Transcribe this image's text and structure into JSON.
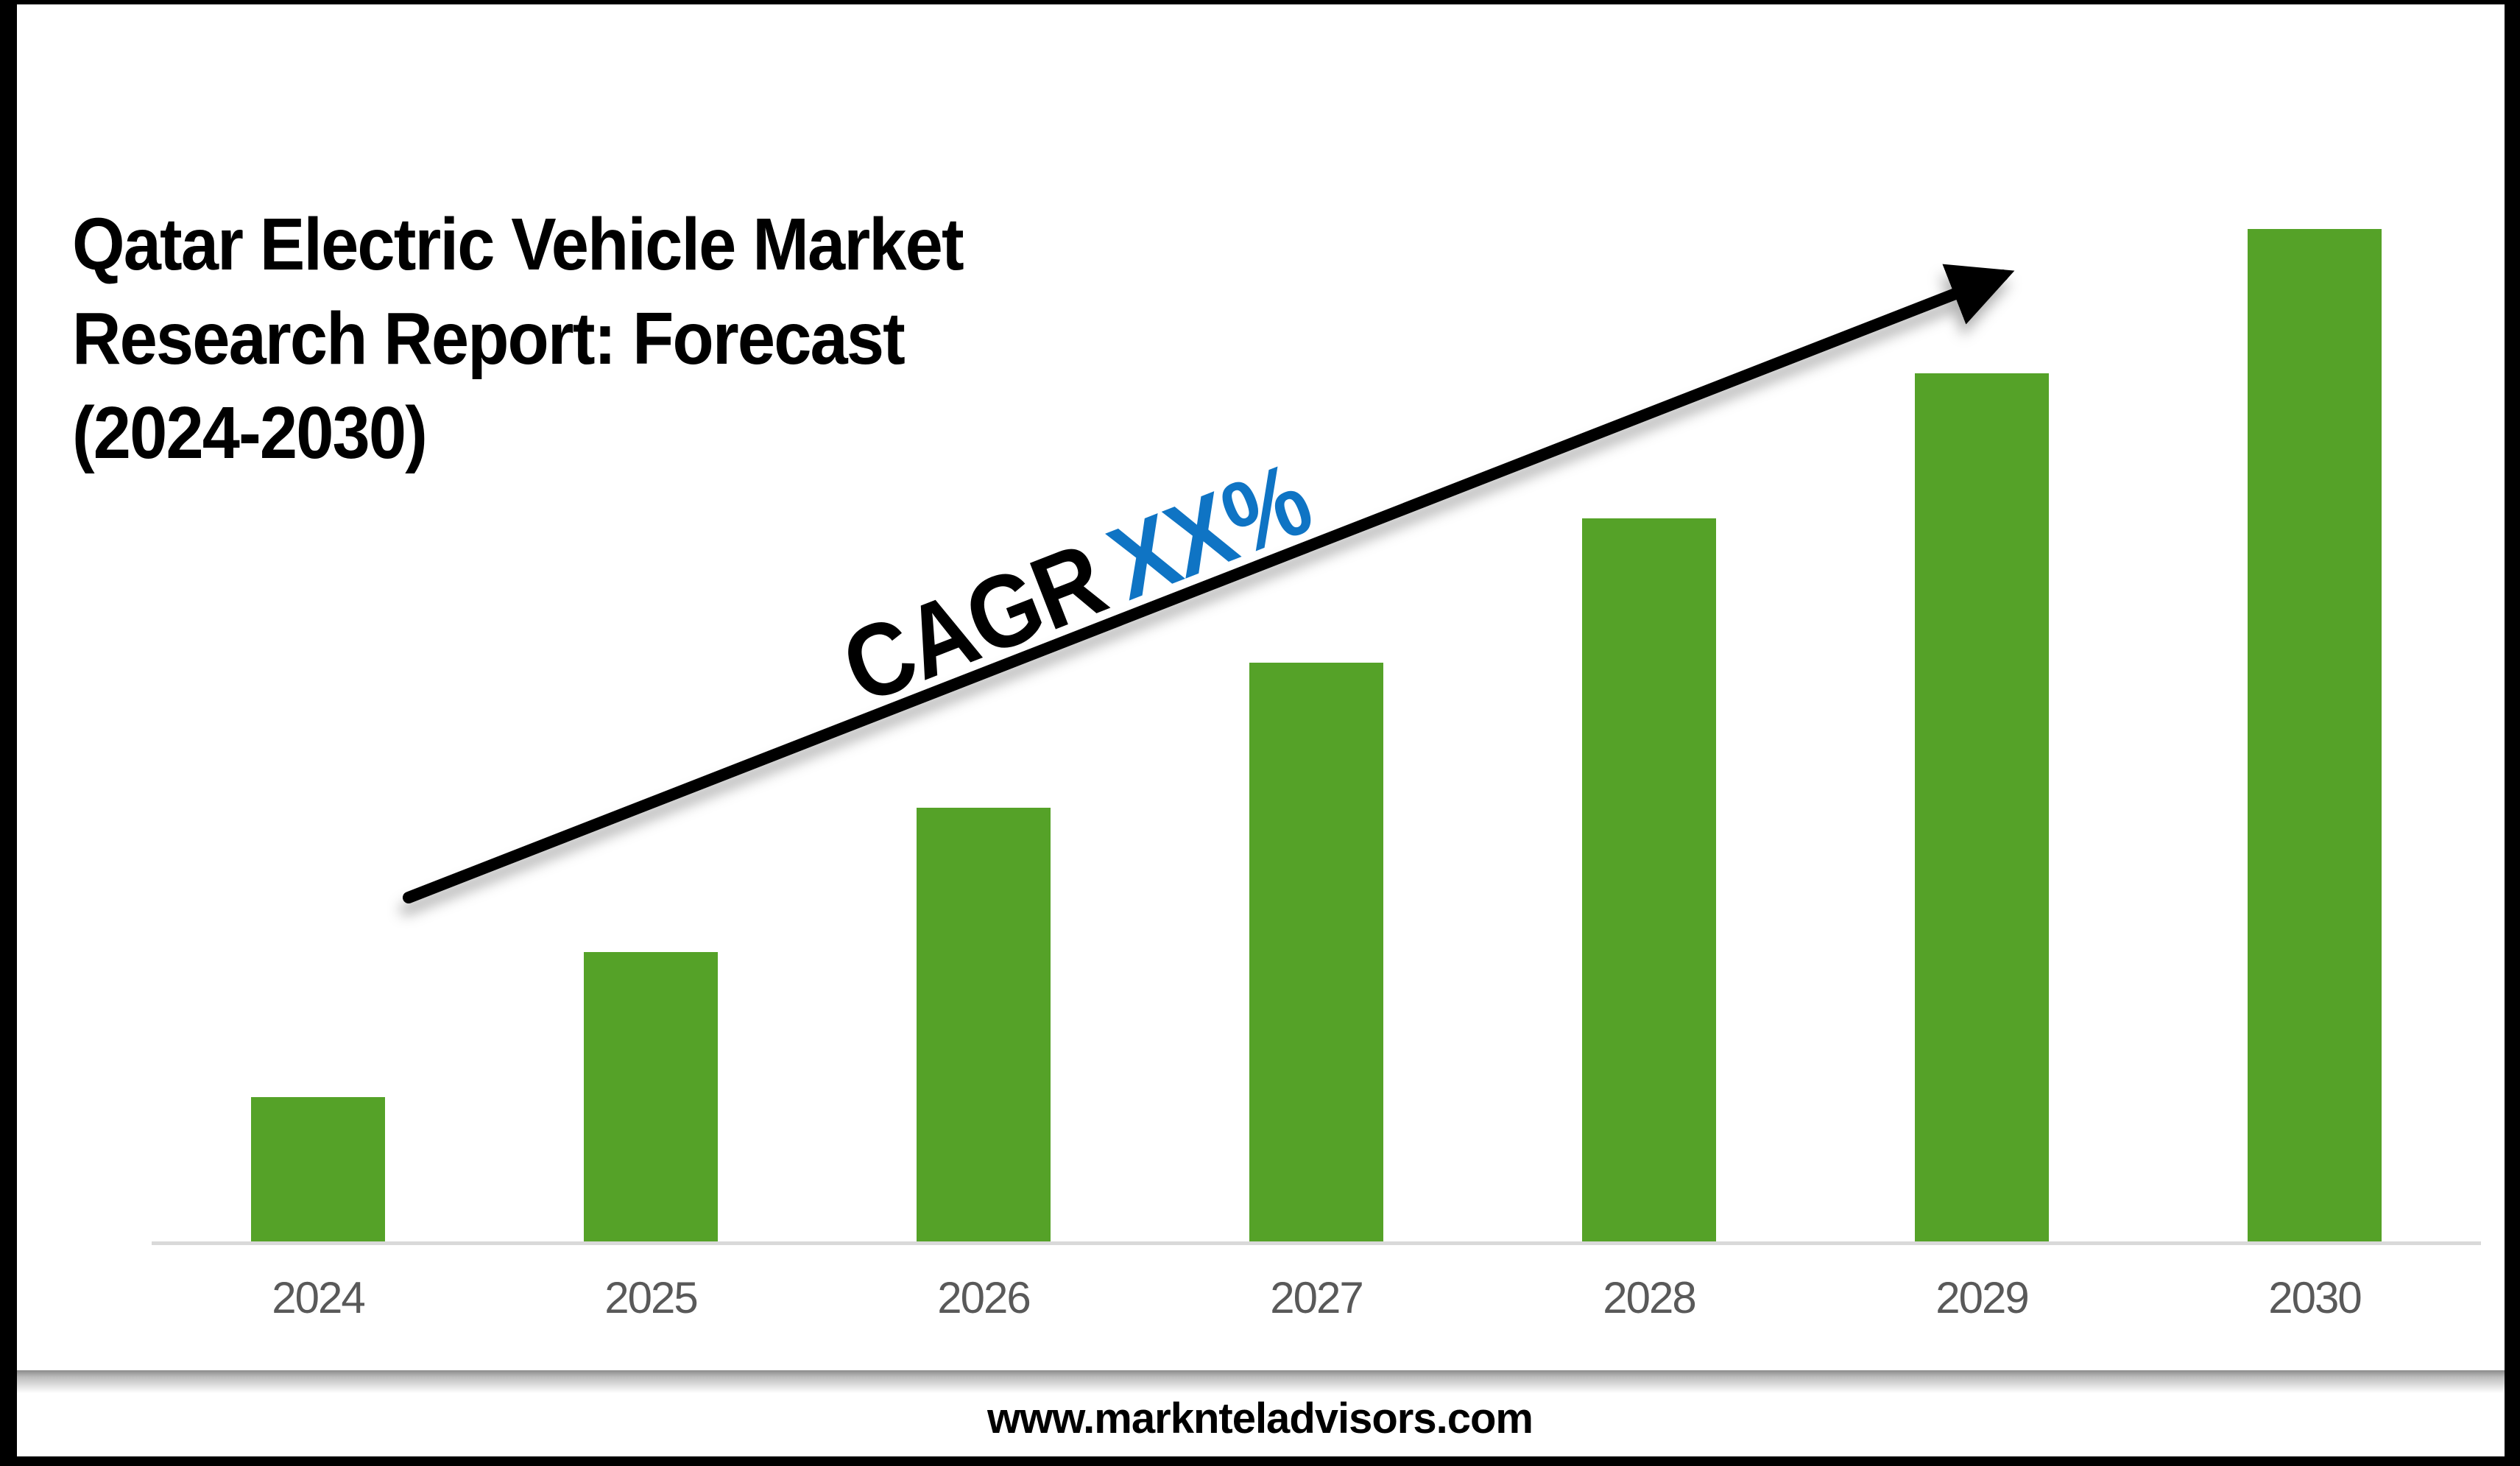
{
  "title": {
    "lines": [
      "Qatar Electric Vehicle Market",
      "Research Report: Forecast",
      "(2024-2030)"
    ]
  },
  "cagr": {
    "label": "CAGR",
    "value": "XX%",
    "label_color": "#000000",
    "value_color": "#0f74c4"
  },
  "footer": {
    "website": "www.marknteladvisors.com"
  },
  "chart_data": {
    "type": "bar",
    "title": "Qatar Electric Vehicle Market Research Report: Forecast (2024-2030)",
    "categories": [
      "2024",
      "2025",
      "2026",
      "2027",
      "2028",
      "2029",
      "2030"
    ],
    "values": [
      1,
      2,
      3,
      4,
      5,
      6,
      7
    ],
    "values_note": "No y-axis scale is shown; bars grow linearly year over year (relative heights 1:2:3:4:5:6:7). Growth rate labeled only as CAGR XX%.",
    "xlabel": "",
    "ylabel": "",
    "ylim": [
      0,
      7
    ],
    "grid": false,
    "legend": false,
    "bar_color": "#55a228",
    "axis_line_color": "#d9d9d9",
    "tick_label_color": "#595959",
    "annotation": {
      "text": "CAGR XX%",
      "arrow": "diagonal ascending left-to-right"
    }
  }
}
